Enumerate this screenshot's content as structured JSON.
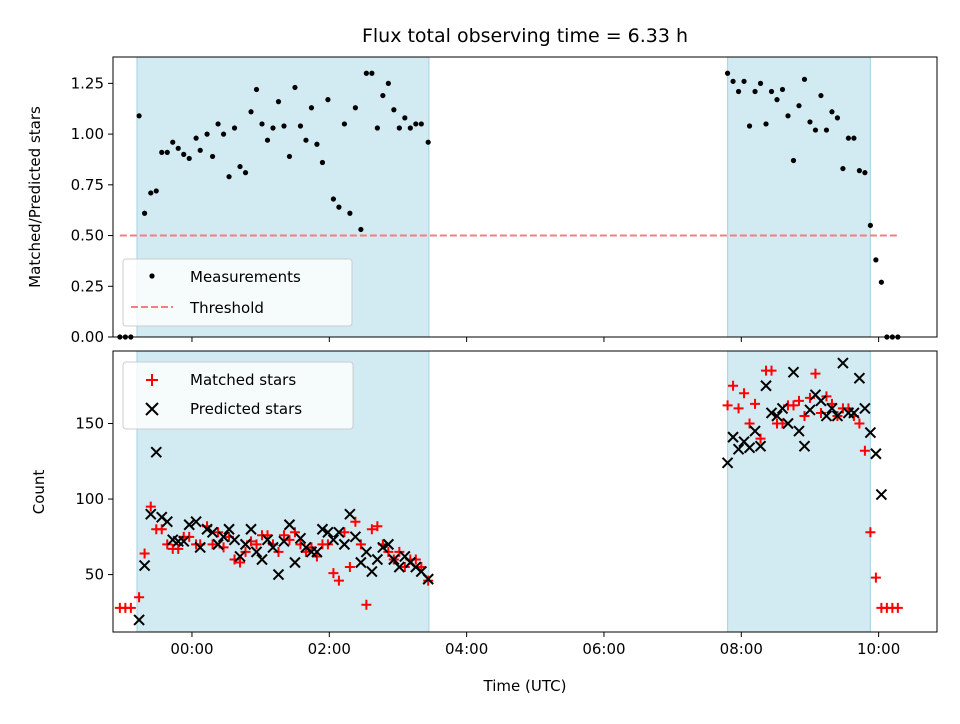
{
  "chart_data": [
    {
      "type": "scatter",
      "title": "Flux total observing time = 6.33 h",
      "xlabel": "",
      "ylabel": "Matched/Predicted stars",
      "xlim": [
        -1.15,
        10.85
      ],
      "ylim": [
        0,
        1.38
      ],
      "x_ticks": [
        0,
        2,
        4,
        6,
        8,
        10
      ],
      "y_ticks": [
        0.0,
        0.25,
        0.5,
        0.75,
        1.0,
        1.25
      ],
      "y_tick_labels": [
        "0.00",
        "0.25",
        "0.50",
        "0.75",
        "1.00",
        "1.25"
      ],
      "shaded_intervals": [
        [
          -0.8,
          3.45
        ],
        [
          7.8,
          9.88
        ]
      ],
      "shade_color": "#add8e6",
      "threshold": {
        "value": 0.5,
        "x_range": [
          -1.05,
          10.3
        ],
        "color": "#f08080",
        "label": "Threshold"
      },
      "legend": {
        "placement": "lower-left",
        "entries": [
          "Measurements",
          "Threshold"
        ]
      },
      "series": [
        {
          "name": "Measurements",
          "color": "#000000",
          "marker": "dot",
          "points": [
            [
              -1.05,
              0.0
            ],
            [
              -0.97,
              0.0
            ],
            [
              -0.89,
              0.0
            ],
            [
              -0.77,
              1.09
            ],
            [
              -0.69,
              0.61
            ],
            [
              -0.6,
              0.71
            ],
            [
              -0.52,
              0.72
            ],
            [
              -0.44,
              0.91
            ],
            [
              -0.36,
              0.91
            ],
            [
              -0.28,
              0.96
            ],
            [
              -0.2,
              0.93
            ],
            [
              -0.12,
              0.9
            ],
            [
              -0.04,
              0.88
            ],
            [
              0.06,
              0.98
            ],
            [
              0.12,
              0.92
            ],
            [
              0.22,
              1.0
            ],
            [
              0.3,
              0.89
            ],
            [
              0.38,
              1.05
            ],
            [
              0.46,
              1.0
            ],
            [
              0.54,
              0.79
            ],
            [
              0.62,
              1.03
            ],
            [
              0.7,
              0.84
            ],
            [
              0.78,
              0.81
            ],
            [
              0.86,
              1.11
            ],
            [
              0.94,
              1.22
            ],
            [
              1.02,
              1.05
            ],
            [
              1.1,
              0.97
            ],
            [
              1.18,
              1.03
            ],
            [
              1.26,
              1.16
            ],
            [
              1.34,
              1.04
            ],
            [
              1.42,
              0.89
            ],
            [
              1.5,
              1.23
            ],
            [
              1.58,
              1.04
            ],
            [
              1.66,
              0.97
            ],
            [
              1.74,
              1.13
            ],
            [
              1.82,
              0.95
            ],
            [
              1.9,
              0.86
            ],
            [
              1.98,
              1.17
            ],
            [
              2.06,
              0.68
            ],
            [
              2.14,
              0.64
            ],
            [
              2.22,
              1.05
            ],
            [
              2.3,
              0.61
            ],
            [
              2.38,
              1.13
            ],
            [
              2.46,
              0.53
            ],
            [
              2.54,
              1.3
            ],
            [
              2.62,
              1.3
            ],
            [
              2.7,
              1.03
            ],
            [
              2.78,
              1.19
            ],
            [
              2.86,
              1.25
            ],
            [
              2.94,
              1.12
            ],
            [
              3.02,
              1.03
            ],
            [
              3.1,
              1.08
            ],
            [
              3.18,
              1.03
            ],
            [
              3.26,
              1.05
            ],
            [
              3.34,
              1.05
            ],
            [
              3.44,
              0.96
            ],
            [
              7.8,
              1.3
            ],
            [
              7.88,
              1.26
            ],
            [
              7.96,
              1.21
            ],
            [
              8.04,
              1.26
            ],
            [
              8.12,
              1.04
            ],
            [
              8.2,
              1.21
            ],
            [
              8.28,
              1.25
            ],
            [
              8.36,
              1.05
            ],
            [
              8.44,
              1.21
            ],
            [
              8.52,
              1.17
            ],
            [
              8.6,
              1.22
            ],
            [
              8.68,
              1.09
            ],
            [
              8.76,
              0.87
            ],
            [
              8.84,
              1.14
            ],
            [
              8.92,
              1.27
            ],
            [
              9.0,
              1.06
            ],
            [
              9.08,
              1.02
            ],
            [
              9.16,
              1.19
            ],
            [
              9.24,
              1.02
            ],
            [
              9.32,
              1.11
            ],
            [
              9.4,
              1.08
            ],
            [
              9.48,
              0.83
            ],
            [
              9.56,
              0.98
            ],
            [
              9.64,
              0.98
            ],
            [
              9.72,
              0.82
            ],
            [
              9.8,
              0.81
            ],
            [
              9.88,
              0.55
            ],
            [
              9.96,
              0.38
            ],
            [
              10.04,
              0.27
            ],
            [
              10.12,
              0.0
            ],
            [
              10.2,
              0.0
            ],
            [
              10.28,
              0.0
            ]
          ]
        }
      ]
    },
    {
      "type": "scatter",
      "title": "",
      "xlabel": "Time (UTC)",
      "ylabel": "Count",
      "xlim": [
        -1.15,
        10.85
      ],
      "ylim": [
        12,
        198
      ],
      "x_ticks": [
        0,
        2,
        4,
        6,
        8,
        10
      ],
      "x_tick_labels": [
        "00:00",
        "02:00",
        "04:00",
        "06:00",
        "08:00",
        "10:00"
      ],
      "y_ticks": [
        50,
        100,
        150
      ],
      "y_tick_labels": [
        "50",
        "100",
        "150"
      ],
      "shaded_intervals": [
        [
          -0.8,
          3.45
        ],
        [
          7.8,
          9.88
        ]
      ],
      "shade_color": "#add8e6",
      "legend": {
        "placement": "top-left",
        "entries": [
          "Matched stars",
          "Predicted stars"
        ]
      },
      "series": [
        {
          "name": "Matched stars",
          "color": "#ff0000",
          "marker": "plus",
          "points": [
            [
              -1.05,
              28
            ],
            [
              -0.97,
              28
            ],
            [
              -0.89,
              28
            ],
            [
              -0.77,
              35
            ],
            [
              -0.69,
              64
            ],
            [
              -0.6,
              95
            ],
            [
              -0.52,
              80
            ],
            [
              -0.44,
              80
            ],
            [
              -0.36,
              70
            ],
            [
              -0.28,
              67
            ],
            [
              -0.2,
              67
            ],
            [
              -0.12,
              75
            ],
            [
              -0.04,
              75
            ],
            [
              0.06,
              70
            ],
            [
              0.12,
              70
            ],
            [
              0.22,
              82
            ],
            [
              0.3,
              70
            ],
            [
              0.38,
              78
            ],
            [
              0.46,
              68
            ],
            [
              0.54,
              75
            ],
            [
              0.62,
              60
            ],
            [
              0.7,
              58
            ],
            [
              0.78,
              65
            ],
            [
              0.86,
              72
            ],
            [
              0.94,
              70
            ],
            [
              1.02,
              76
            ],
            [
              1.1,
              76
            ],
            [
              1.18,
              70
            ],
            [
              1.26,
              65
            ],
            [
              1.34,
              76
            ],
            [
              1.42,
              73
            ],
            [
              1.5,
              78
            ],
            [
              1.58,
              70
            ],
            [
              1.66,
              65
            ],
            [
              1.74,
              68
            ],
            [
              1.82,
              62
            ],
            [
              1.9,
              70
            ],
            [
              1.98,
              70
            ],
            [
              2.06,
              51
            ],
            [
              2.14,
              46
            ],
            [
              2.22,
              78
            ],
            [
              2.3,
              55
            ],
            [
              2.38,
              85
            ],
            [
              2.46,
              70
            ],
            [
              2.54,
              30
            ],
            [
              2.62,
              80
            ],
            [
              2.7,
              82
            ],
            [
              2.78,
              70
            ],
            [
              2.86,
              65
            ],
            [
              2.94,
              60
            ],
            [
              3.02,
              65
            ],
            [
              3.1,
              55
            ],
            [
              3.18,
              60
            ],
            [
              3.26,
              60
            ],
            [
              3.34,
              55
            ],
            [
              3.44,
              46
            ],
            [
              7.8,
              162
            ],
            [
              7.88,
              175
            ],
            [
              7.96,
              160
            ],
            [
              8.04,
              170
            ],
            [
              8.12,
              150
            ],
            [
              8.2,
              163
            ],
            [
              8.28,
              140
            ],
            [
              8.36,
              185
            ],
            [
              8.44,
              185
            ],
            [
              8.52,
              150
            ],
            [
              8.6,
              150
            ],
            [
              8.68,
              162
            ],
            [
              8.76,
              162
            ],
            [
              8.84,
              165
            ],
            [
              8.92,
              155
            ],
            [
              9.0,
              167
            ],
            [
              9.08,
              183
            ],
            [
              9.16,
              157
            ],
            [
              9.24,
              168
            ],
            [
              9.32,
              163
            ],
            [
              9.4,
              155
            ],
            [
              9.48,
              160
            ],
            [
              9.56,
              160
            ],
            [
              9.64,
              155
            ],
            [
              9.72,
              150
            ],
            [
              9.8,
              132
            ],
            [
              9.88,
              78
            ],
            [
              9.96,
              48
            ],
            [
              10.04,
              28
            ],
            [
              10.12,
              28
            ],
            [
              10.2,
              28
            ],
            [
              10.28,
              28
            ]
          ]
        },
        {
          "name": "Predicted stars",
          "color": "#000000",
          "marker": "x",
          "points": [
            [
              -0.77,
              20
            ],
            [
              -0.69,
              56
            ],
            [
              -0.6,
              90
            ],
            [
              -0.52,
              131
            ],
            [
              -0.44,
              88
            ],
            [
              -0.36,
              85
            ],
            [
              -0.28,
              73
            ],
            [
              -0.2,
              72
            ],
            [
              -0.12,
              72
            ],
            [
              -0.04,
              83
            ],
            [
              0.06,
              85
            ],
            [
              0.12,
              68
            ],
            [
              0.22,
              80
            ],
            [
              0.3,
              78
            ],
            [
              0.38,
              70
            ],
            [
              0.46,
              75
            ],
            [
              0.54,
              80
            ],
            [
              0.62,
              73
            ],
            [
              0.7,
              62
            ],
            [
              0.78,
              70
            ],
            [
              0.86,
              80
            ],
            [
              0.94,
              65
            ],
            [
              1.02,
              60
            ],
            [
              1.1,
              73
            ],
            [
              1.18,
              68
            ],
            [
              1.26,
              50
            ],
            [
              1.34,
              72
            ],
            [
              1.42,
              83
            ],
            [
              1.5,
              58
            ],
            [
              1.58,
              74
            ],
            [
              1.66,
              68
            ],
            [
              1.74,
              65
            ],
            [
              1.82,
              65
            ],
            [
              1.9,
              80
            ],
            [
              1.98,
              78
            ],
            [
              2.06,
              73
            ],
            [
              2.14,
              78
            ],
            [
              2.22,
              70
            ],
            [
              2.3,
              90
            ],
            [
              2.38,
              75
            ],
            [
              2.46,
              58
            ],
            [
              2.54,
              65
            ],
            [
              2.62,
              52
            ],
            [
              2.7,
              60
            ],
            [
              2.78,
              68
            ],
            [
              2.86,
              70
            ],
            [
              2.94,
              60
            ],
            [
              3.02,
              55
            ],
            [
              3.1,
              62
            ],
            [
              3.18,
              58
            ],
            [
              3.26,
              55
            ],
            [
              3.34,
              52
            ],
            [
              3.44,
              47
            ],
            [
              7.8,
              124
            ],
            [
              7.88,
              141
            ],
            [
              7.96,
              133
            ],
            [
              8.04,
              138
            ],
            [
              8.12,
              134
            ],
            [
              8.2,
              145
            ],
            [
              8.28,
              135
            ],
            [
              8.36,
              175
            ],
            [
              8.44,
              157
            ],
            [
              8.52,
              155
            ],
            [
              8.6,
              160
            ],
            [
              8.68,
              150
            ],
            [
              8.76,
              184
            ],
            [
              8.84,
              145
            ],
            [
              8.92,
              135
            ],
            [
              9.0,
              159
            ],
            [
              9.08,
              169
            ],
            [
              9.16,
              165
            ],
            [
              9.24,
              155
            ],
            [
              9.32,
              160
            ],
            [
              9.4,
              155
            ],
            [
              9.48,
              190
            ],
            [
              9.56,
              157
            ],
            [
              9.64,
              157
            ],
            [
              9.72,
              180
            ],
            [
              9.8,
              160
            ],
            [
              9.88,
              144
            ],
            [
              9.96,
              130
            ],
            [
              10.04,
              103
            ]
          ]
        }
      ]
    }
  ]
}
